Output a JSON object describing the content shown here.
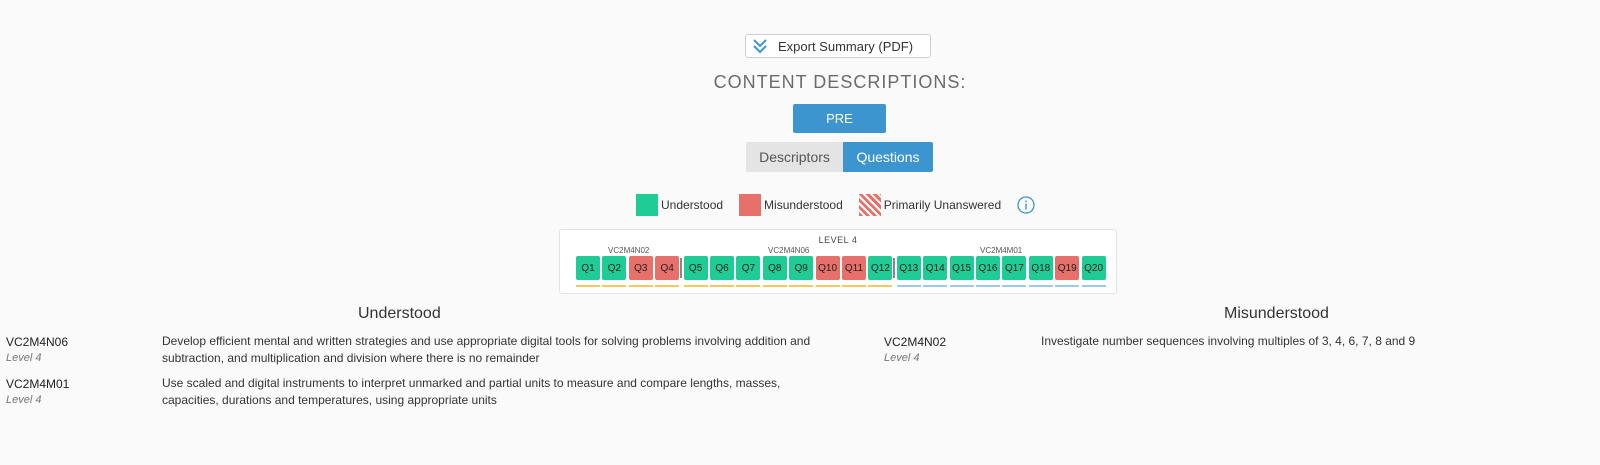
{
  "export": {
    "label": "Export Summary (PDF)",
    "icon": "double-chevron-down-icon"
  },
  "section_title": "CONTENT DESCRIPTIONS:",
  "pre_button": "PRE",
  "toggle": {
    "left": "Descriptors",
    "right": "Questions",
    "active": "Questions"
  },
  "legend": {
    "understood": "Understood",
    "misunderstood": "Misunderstood",
    "unanswered": "Primarily Unanswered",
    "info_icon": "info-icon"
  },
  "colors": {
    "understood": "#1fcc96",
    "misunderstood": "#e8706b",
    "accent": "#3d95cf"
  },
  "level": {
    "title": "LEVEL 4",
    "groups": [
      "VC2M4N02",
      "VC2M4N06",
      "VC2M4M01"
    ],
    "questions": [
      {
        "label": "Q1",
        "status": "understood"
      },
      {
        "label": "Q2",
        "status": "understood"
      },
      {
        "label": "Q3",
        "status": "misunderstood"
      },
      {
        "label": "Q4",
        "status": "misunderstood"
      },
      {
        "label": "Q5",
        "status": "understood"
      },
      {
        "label": "Q6",
        "status": "understood"
      },
      {
        "label": "Q7",
        "status": "understood"
      },
      {
        "label": "Q8",
        "status": "understood"
      },
      {
        "label": "Q9",
        "status": "understood"
      },
      {
        "label": "Q10",
        "status": "misunderstood"
      },
      {
        "label": "Q11",
        "status": "misunderstood"
      },
      {
        "label": "Q12",
        "status": "understood"
      },
      {
        "label": "Q13",
        "status": "understood"
      },
      {
        "label": "Q14",
        "status": "understood"
      },
      {
        "label": "Q15",
        "status": "understood"
      },
      {
        "label": "Q16",
        "status": "understood"
      },
      {
        "label": "Q17",
        "status": "understood"
      },
      {
        "label": "Q18",
        "status": "understood"
      },
      {
        "label": "Q19",
        "status": "misunderstood"
      },
      {
        "label": "Q20",
        "status": "understood"
      }
    ]
  },
  "understood": {
    "heading": "Understood",
    "items": [
      {
        "code": "VC2M4N06",
        "level": "Level 4",
        "desc_line1": "Develop efficient mental and written strategies and use appropriate digital tools for solving problems involving addition and",
        "desc_line2": "subtraction, and multiplication and division where there is no remainder"
      },
      {
        "code": "VC2M4M01",
        "level": "Level 4",
        "desc_line1": "Use scaled and digital instruments to interpret unmarked and partial units to measure and compare lengths, masses,",
        "desc_line2": "capacities, durations and temperatures, using appropriate units"
      }
    ]
  },
  "misunderstood": {
    "heading": "Misunderstood",
    "items": [
      {
        "code": "VC2M4N02",
        "level": "Level 4",
        "desc": "Investigate number sequences involving multiples of 3, 4, 6, 7, 8 and 9"
      }
    ]
  }
}
